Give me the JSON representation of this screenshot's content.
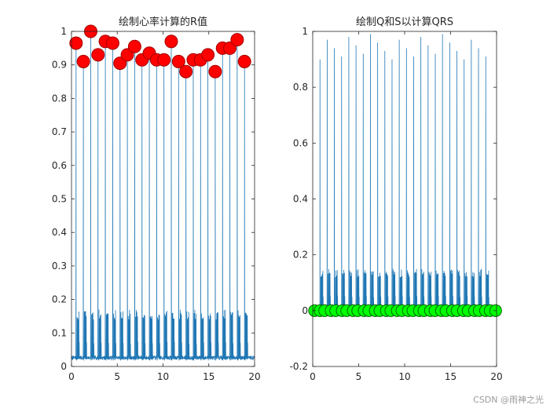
{
  "chart_data": [
    {
      "type": "line",
      "title": "绘制心率计算的R值",
      "xlabel": "",
      "ylabel": "",
      "xlim": [
        0,
        20
      ],
      "ylim": [
        0,
        1
      ],
      "xticks": [
        "0",
        "5",
        "10",
        "15",
        "20"
      ],
      "yticks": [
        "0",
        "0.1",
        "0.2",
        "0.3",
        "0.4",
        "0.5",
        "0.6",
        "0.7",
        "0.8",
        "0.9",
        "1"
      ],
      "grid": false,
      "line_color": "#1f77b4",
      "marker_color": "#ff0000",
      "r_peaks": {
        "x": [
          0.5,
          1.3,
          2.1,
          2.9,
          3.7,
          4.5,
          5.3,
          6.1,
          6.9,
          7.7,
          8.5,
          9.3,
          10.1,
          10.9,
          11.7,
          12.5,
          13.3,
          14.1,
          14.9,
          15.7,
          16.5,
          17.3,
          18.1,
          18.9
        ],
        "y": [
          0.965,
          0.91,
          1.0,
          0.93,
          0.97,
          0.965,
          0.905,
          0.93,
          0.955,
          0.915,
          0.935,
          0.915,
          0.915,
          0.97,
          0.91,
          0.88,
          0.915,
          0.915,
          0.93,
          0.88,
          0.95,
          0.95,
          0.975,
          0.91
        ]
      }
    },
    {
      "type": "line",
      "title": "绘制Q和S以计算QRS",
      "xlabel": "",
      "ylabel": "",
      "xlim": [
        0,
        20
      ],
      "ylim": [
        -0.2,
        1
      ],
      "xticks": [
        "0",
        "5",
        "10",
        "15",
        "20"
      ],
      "yticks": [
        "-0.2",
        "0",
        "0.2",
        "0.4",
        "0.6",
        "0.8",
        "1"
      ],
      "grid": false,
      "line_color": "#1f77b4",
      "marker_color": "#00ff00",
      "q_s_points": {
        "x": [
          0.2,
          0.8,
          1.3,
          2.0,
          2.5,
          3.2,
          3.7,
          4.4,
          4.9,
          5.6,
          6.1,
          6.8,
          7.3,
          8.0,
          8.5,
          9.2,
          9.7,
          10.4,
          10.9,
          11.6,
          12.1,
          12.8,
          13.3,
          14.0,
          14.5,
          15.2,
          15.7,
          16.4,
          16.9,
          17.6,
          18.1,
          18.8,
          19.3,
          19.9
        ],
        "y": [
          0,
          0,
          0,
          0,
          0,
          0,
          0,
          0,
          0,
          0,
          0,
          0,
          0,
          0,
          0,
          0,
          0,
          0,
          0,
          0,
          0,
          0,
          0,
          0,
          0,
          0,
          0,
          0,
          0,
          0,
          0,
          0,
          0,
          0
        ]
      }
    }
  ],
  "watermark": "CSDN @雨神之光"
}
